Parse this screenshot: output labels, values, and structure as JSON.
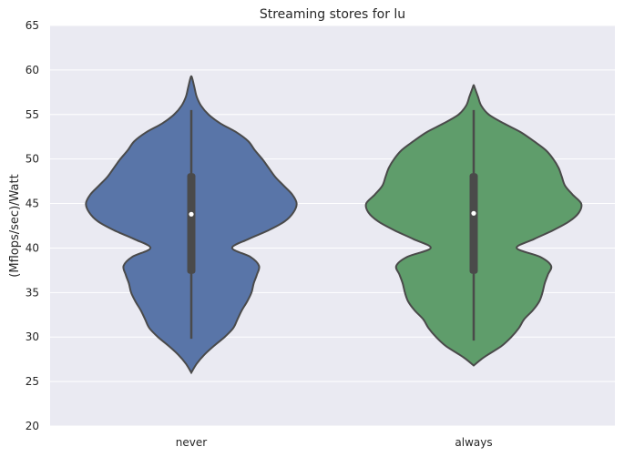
{
  "chart_data": {
    "type": "violin",
    "title": "Streaming stores for lu",
    "xlabel": "",
    "ylabel": "(Mflops/sec)/Watt",
    "ylim": [
      20,
      65
    ],
    "yticks": [
      20,
      25,
      30,
      35,
      40,
      45,
      50,
      55,
      60,
      65
    ],
    "grid": true,
    "legend": "none",
    "categories": [
      "never",
      "always"
    ],
    "colors": {
      "never": "#5975a8",
      "always": "#5f9d6b",
      "background": "#eaeaf2",
      "grid": "#ffffff",
      "outline": "#4a4a4a",
      "box": "#4a4a4a",
      "median_dot": "#ffffff"
    },
    "violins": [
      {
        "category": "never",
        "min": 26,
        "max": 59.3,
        "whisker_low": 29.8,
        "whisker_high": 55.5,
        "q1": 37.1,
        "median": 43.8,
        "q3": 48.4,
        "profile": [
          [
            26.0,
            0.0
          ],
          [
            27.0,
            0.05
          ],
          [
            28.0,
            0.12
          ],
          [
            29.0,
            0.21
          ],
          [
            30.0,
            0.31
          ],
          [
            31.0,
            0.39
          ],
          [
            32.0,
            0.43
          ],
          [
            33.0,
            0.47
          ],
          [
            34.0,
            0.52
          ],
          [
            35.0,
            0.56
          ],
          [
            36.0,
            0.58
          ],
          [
            37.0,
            0.61
          ],
          [
            38.0,
            0.63
          ],
          [
            39.0,
            0.55
          ],
          [
            40.0,
            0.38
          ],
          [
            41.0,
            0.53
          ],
          [
            42.0,
            0.72
          ],
          [
            43.0,
            0.87
          ],
          [
            44.0,
            0.95
          ],
          [
            45.0,
            0.98
          ],
          [
            46.0,
            0.94
          ],
          [
            47.0,
            0.86
          ],
          [
            48.0,
            0.78
          ],
          [
            49.0,
            0.72
          ],
          [
            50.0,
            0.66
          ],
          [
            51.0,
            0.59
          ],
          [
            52.0,
            0.53
          ],
          [
            53.0,
            0.42
          ],
          [
            54.0,
            0.27
          ],
          [
            55.0,
            0.16
          ],
          [
            56.0,
            0.09
          ],
          [
            57.0,
            0.05
          ],
          [
            58.0,
            0.03
          ],
          [
            59.0,
            0.01
          ],
          [
            59.3,
            0.0
          ]
        ]
      },
      {
        "category": "always",
        "min": 26.8,
        "max": 58.3,
        "whisker_low": 29.6,
        "whisker_high": 55.5,
        "q1": 37.1,
        "median": 43.9,
        "q3": 48.4,
        "profile": [
          [
            26.8,
            0.0
          ],
          [
            27.5,
            0.07
          ],
          [
            28.0,
            0.13
          ],
          [
            29.0,
            0.26
          ],
          [
            30.0,
            0.35
          ],
          [
            31.0,
            0.42
          ],
          [
            32.0,
            0.47
          ],
          [
            33.0,
            0.55
          ],
          [
            34.0,
            0.61
          ],
          [
            35.0,
            0.64
          ],
          [
            36.0,
            0.66
          ],
          [
            37.0,
            0.69
          ],
          [
            38.0,
            0.72
          ],
          [
            39.0,
            0.62
          ],
          [
            40.0,
            0.4
          ],
          [
            41.0,
            0.56
          ],
          [
            42.0,
            0.74
          ],
          [
            43.0,
            0.89
          ],
          [
            44.0,
            0.98
          ],
          [
            45.0,
            1.0
          ],
          [
            46.0,
            0.92
          ],
          [
            47.0,
            0.85
          ],
          [
            48.0,
            0.82
          ],
          [
            49.0,
            0.79
          ],
          [
            50.0,
            0.74
          ],
          [
            51.0,
            0.67
          ],
          [
            52.0,
            0.56
          ],
          [
            53.0,
            0.44
          ],
          [
            54.0,
            0.28
          ],
          [
            55.0,
            0.14
          ],
          [
            56.0,
            0.07
          ],
          [
            57.0,
            0.04
          ],
          [
            58.0,
            0.01
          ],
          [
            58.3,
            0.0
          ]
        ]
      }
    ]
  }
}
